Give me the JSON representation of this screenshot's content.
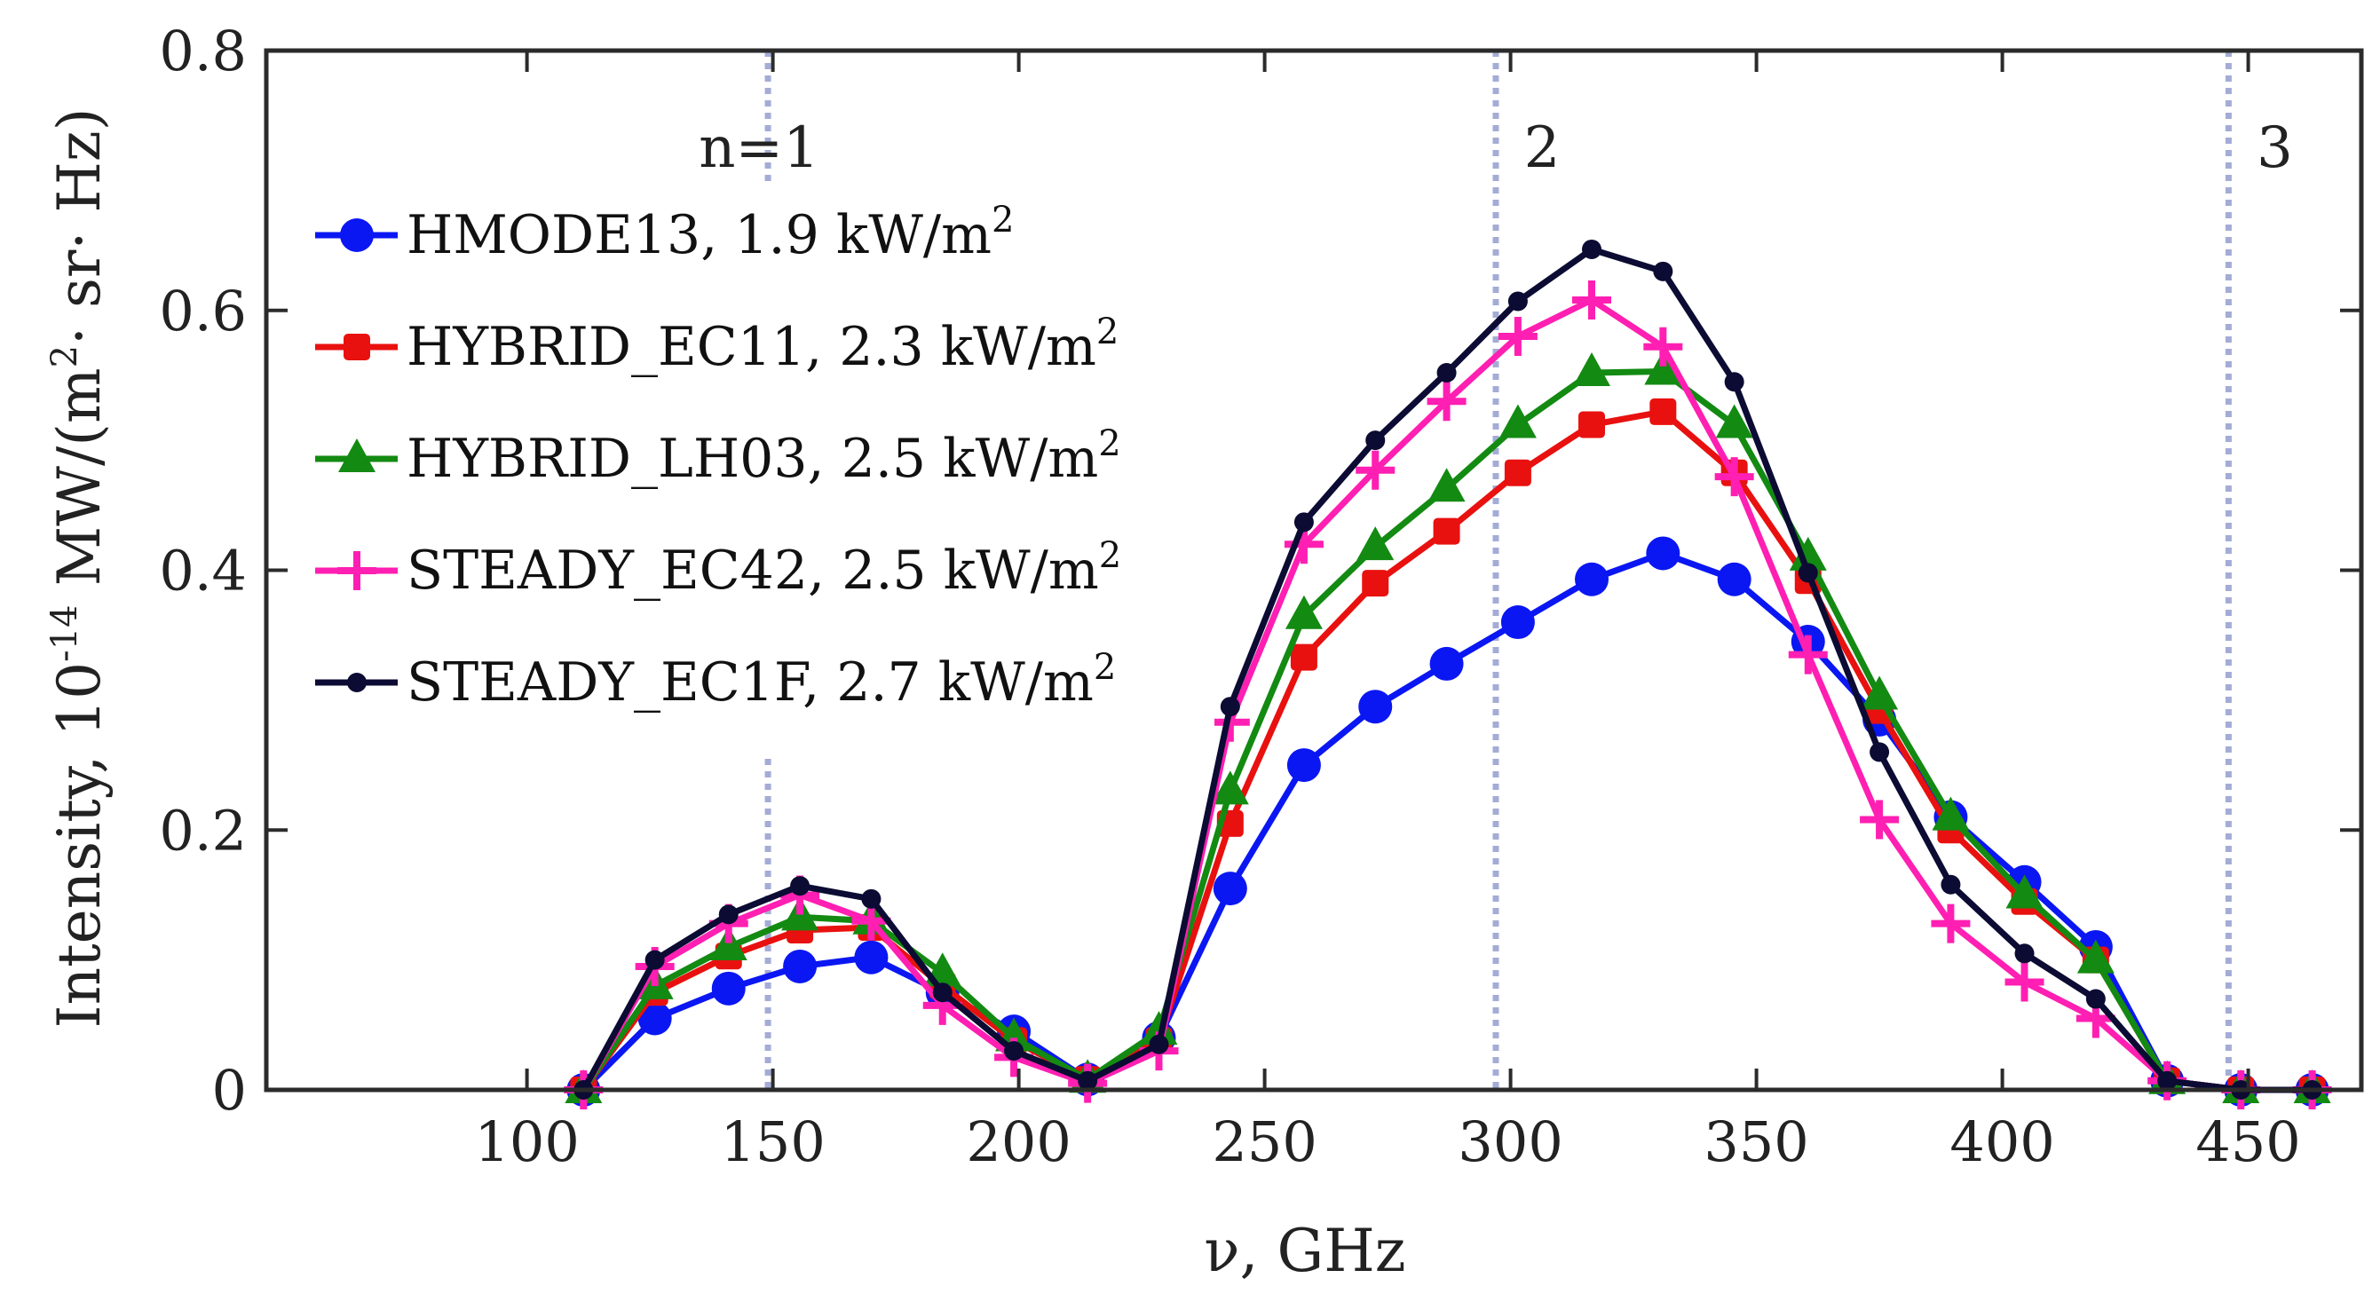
{
  "chart_data": {
    "type": "line",
    "xlabel": "ν, GHz",
    "ylabel_main": "Intensity, 10",
    "ylabel_exp": "-14",
    "ylabel_unit_a": " MW/(m",
    "ylabel_unit_exp": "2",
    "ylabel_unit_b": "· sr· Hz)",
    "xlim": [
      47,
      473
    ],
    "ylim": [
      0,
      0.8
    ],
    "xticks": [
      100,
      150,
      200,
      250,
      300,
      350,
      400,
      450
    ],
    "yticks": [
      0,
      0.2,
      0.4,
      0.6,
      0.8
    ],
    "ytick_labels": [
      "0",
      "0.2",
      "0.4",
      "0.6",
      "0.8"
    ],
    "harmonics": [
      {
        "x": 149,
        "label": "n=1"
      },
      {
        "x": 297,
        "label": "2"
      },
      {
        "x": 446,
        "label": "3"
      }
    ],
    "x": [
      111.5,
      126,
      141,
      155.5,
      170,
      184.5,
      199,
      214,
      228.5,
      243,
      258,
      272.5,
      287,
      301.5,
      316.5,
      331,
      345.5,
      360.5,
      375,
      389.5,
      404.5,
      419,
      433.5,
      448.5,
      463
    ],
    "series": [
      {
        "name": "HMODE13, 1.9 kW/m",
        "sup": "2",
        "color": "#0a17f2",
        "marker": "circle",
        "values": [
          0.0,
          0.055,
          0.078,
          0.095,
          0.102,
          0.075,
          0.045,
          0.008,
          0.04,
          0.155,
          0.25,
          0.295,
          0.328,
          0.36,
          0.393,
          0.413,
          0.393,
          0.345,
          0.285,
          0.21,
          0.16,
          0.11,
          0.007,
          0.0,
          0.0
        ]
      },
      {
        "name": "HYBRID_EC11, 2.3 kW/m",
        "sup": "2",
        "color": "#e8110f",
        "marker": "square",
        "values": [
          0.0,
          0.075,
          0.103,
          0.123,
          0.125,
          0.08,
          0.038,
          0.008,
          0.038,
          0.205,
          0.333,
          0.39,
          0.43,
          0.475,
          0.512,
          0.522,
          0.475,
          0.392,
          0.292,
          0.2,
          0.145,
          0.1,
          0.007,
          0.0,
          0.0
        ]
      },
      {
        "name": "HYBRID_LH03, 2.5 kW/m",
        "sup": "2",
        "color": "#138a12",
        "marker": "triangle",
        "values": [
          0.0,
          0.08,
          0.11,
          0.133,
          0.13,
          0.09,
          0.04,
          0.008,
          0.045,
          0.23,
          0.365,
          0.418,
          0.463,
          0.512,
          0.552,
          0.553,
          0.512,
          0.41,
          0.303,
          0.21,
          0.15,
          0.1,
          0.007,
          0.0,
          0.0
        ]
      },
      {
        "name": "STEADY_EC42, 2.5 kW/m",
        "sup": "2",
        "color": "#ff1fb2",
        "marker": "plus",
        "values": [
          0.0,
          0.095,
          0.128,
          0.15,
          0.13,
          0.065,
          0.025,
          0.005,
          0.03,
          0.283,
          0.42,
          0.477,
          0.53,
          0.58,
          0.608,
          0.572,
          0.472,
          0.335,
          0.208,
          0.128,
          0.083,
          0.055,
          0.007,
          0.0,
          0.0
        ]
      },
      {
        "name": "STEADY_EC1F, 2.7 kW/m",
        "sup": "2",
        "color": "#0b0b33",
        "marker": "dot",
        "values": [
          0.0,
          0.1,
          0.135,
          0.157,
          0.147,
          0.075,
          0.03,
          0.007,
          0.035,
          0.295,
          0.437,
          0.5,
          0.552,
          0.607,
          0.647,
          0.63,
          0.545,
          0.398,
          0.26,
          0.158,
          0.105,
          0.07,
          0.007,
          0.0,
          0.0
        ]
      }
    ],
    "legend_position": "upper-left"
  }
}
